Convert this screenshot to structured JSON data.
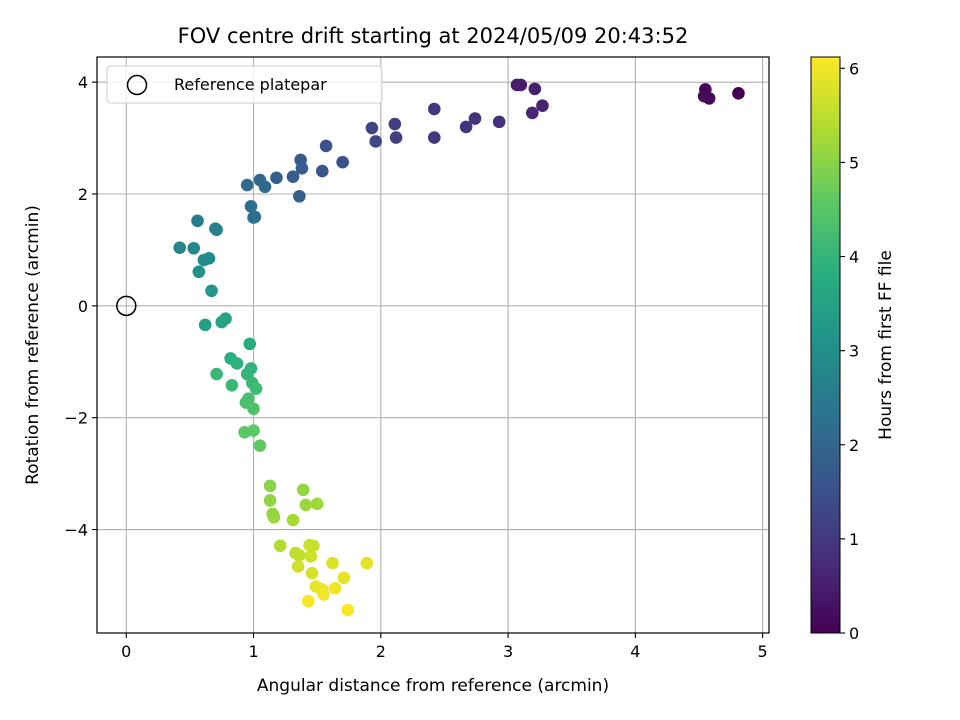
{
  "chart_data": {
    "type": "scatter",
    "title": "FOV centre drift starting at 2024/05/09 20:43:52",
    "xlabel": "Angular distance from reference (arcmin)",
    "ylabel": "Rotation from reference (arcmin)",
    "xlim": [
      -0.23,
      5.05
    ],
    "ylim": [
      -5.85,
      4.45
    ],
    "xticks": [
      0,
      1,
      2,
      3,
      4,
      5
    ],
    "xtick_labels": [
      "0",
      "1",
      "2",
      "3",
      "4",
      "5"
    ],
    "yticks": [
      -4,
      -2,
      0,
      2,
      4
    ],
    "ytick_labels": [
      "−4",
      "−2",
      "0",
      "2",
      "4"
    ],
    "grid": true,
    "legend": {
      "label": "Reference platepar",
      "placement": "top-left"
    },
    "reference_point": {
      "x": 0,
      "y": 0
    },
    "colorbar": {
      "label": "Hours from first FF file",
      "range": [
        0,
        6.12
      ],
      "ticks": [
        0,
        1,
        2,
        3,
        4,
        5,
        6
      ],
      "tick_labels": [
        "0",
        "1",
        "2",
        "3",
        "4",
        "5",
        "6"
      ],
      "colormap": "viridis"
    },
    "points": [
      {
        "x": 4.55,
        "y": 3.87,
        "c": 0.05
      },
      {
        "x": 4.54,
        "y": 3.75,
        "c": 0.1
      },
      {
        "x": 4.58,
        "y": 3.71,
        "c": 0.15
      },
      {
        "x": 4.81,
        "y": 3.8,
        "c": 0.0
      },
      {
        "x": 3.07,
        "y": 3.95,
        "c": 0.45
      },
      {
        "x": 3.1,
        "y": 3.95,
        "c": 0.5
      },
      {
        "x": 3.21,
        "y": 3.88,
        "c": 0.55
      },
      {
        "x": 3.27,
        "y": 3.58,
        "c": 0.6
      },
      {
        "x": 3.19,
        "y": 3.45,
        "c": 0.65
      },
      {
        "x": 2.93,
        "y": 3.29,
        "c": 0.8
      },
      {
        "x": 2.74,
        "y": 3.35,
        "c": 0.85
      },
      {
        "x": 2.67,
        "y": 3.2,
        "c": 0.9
      },
      {
        "x": 2.42,
        "y": 3.52,
        "c": 0.95
      },
      {
        "x": 2.42,
        "y": 3.01,
        "c": 1.0
      },
      {
        "x": 2.11,
        "y": 3.25,
        "c": 1.1
      },
      {
        "x": 2.12,
        "y": 3.01,
        "c": 1.15
      },
      {
        "x": 1.93,
        "y": 3.18,
        "c": 1.25
      },
      {
        "x": 1.96,
        "y": 2.94,
        "c": 1.3
      },
      {
        "x": 1.57,
        "y": 2.86,
        "c": 1.5
      },
      {
        "x": 1.7,
        "y": 2.57,
        "c": 1.55
      },
      {
        "x": 1.54,
        "y": 2.41,
        "c": 1.6
      },
      {
        "x": 1.37,
        "y": 2.61,
        "c": 1.7
      },
      {
        "x": 1.38,
        "y": 2.46,
        "c": 1.75
      },
      {
        "x": 1.31,
        "y": 2.31,
        "c": 1.8
      },
      {
        "x": 1.36,
        "y": 1.96,
        "c": 1.85
      },
      {
        "x": 1.18,
        "y": 2.29,
        "c": 1.9
      },
      {
        "x": 1.05,
        "y": 2.25,
        "c": 2.0
      },
      {
        "x": 1.09,
        "y": 2.13,
        "c": 2.05
      },
      {
        "x": 0.95,
        "y": 2.16,
        "c": 2.1
      },
      {
        "x": 0.98,
        "y": 1.78,
        "c": 2.2
      },
      {
        "x": 1.01,
        "y": 1.59,
        "c": 2.25
      },
      {
        "x": 1.0,
        "y": 1.58,
        "c": 2.3
      },
      {
        "x": 0.56,
        "y": 1.52,
        "c": 2.55
      },
      {
        "x": 0.7,
        "y": 1.38,
        "c": 2.6
      },
      {
        "x": 0.71,
        "y": 1.36,
        "c": 2.65
      },
      {
        "x": 0.42,
        "y": 1.04,
        "c": 2.75
      },
      {
        "x": 0.53,
        "y": 1.03,
        "c": 2.8
      },
      {
        "x": 0.65,
        "y": 0.85,
        "c": 2.9
      },
      {
        "x": 0.61,
        "y": 0.82,
        "c": 2.95
      },
      {
        "x": 0.57,
        "y": 0.61,
        "c": 3.05
      },
      {
        "x": 0.67,
        "y": 0.27,
        "c": 3.2
      },
      {
        "x": 0.62,
        "y": -0.34,
        "c": 3.45
      },
      {
        "x": 0.78,
        "y": -0.23,
        "c": 3.55
      },
      {
        "x": 0.75,
        "y": -0.29,
        "c": 3.6
      },
      {
        "x": 0.97,
        "y": -0.68,
        "c": 3.75
      },
      {
        "x": 0.82,
        "y": -0.94,
        "c": 3.85
      },
      {
        "x": 0.87,
        "y": -1.03,
        "c": 3.9
      },
      {
        "x": 0.98,
        "y": -1.12,
        "c": 3.95
      },
      {
        "x": 0.95,
        "y": -1.22,
        "c": 4.0
      },
      {
        "x": 0.71,
        "y": -1.22,
        "c": 4.05
      },
      {
        "x": 0.99,
        "y": -1.38,
        "c": 4.1
      },
      {
        "x": 0.83,
        "y": -1.42,
        "c": 4.1
      },
      {
        "x": 1.02,
        "y": -1.48,
        "c": 4.15
      },
      {
        "x": 0.96,
        "y": -1.66,
        "c": 4.25
      },
      {
        "x": 0.94,
        "y": -1.73,
        "c": 4.3
      },
      {
        "x": 1.0,
        "y": -1.84,
        "c": 4.35
      },
      {
        "x": 0.93,
        "y": -2.26,
        "c": 4.5
      },
      {
        "x": 1.0,
        "y": -2.23,
        "c": 4.55
      },
      {
        "x": 1.05,
        "y": -2.5,
        "c": 4.6
      },
      {
        "x": 1.13,
        "y": -3.22,
        "c": 5.0
      },
      {
        "x": 1.13,
        "y": -3.48,
        "c": 5.05
      },
      {
        "x": 1.15,
        "y": -3.72,
        "c": 5.1
      },
      {
        "x": 1.16,
        "y": -3.78,
        "c": 5.15
      },
      {
        "x": 1.39,
        "y": -3.29,
        "c": 5.1
      },
      {
        "x": 1.5,
        "y": -3.54,
        "c": 5.2
      },
      {
        "x": 1.41,
        "y": -3.56,
        "c": 5.2
      },
      {
        "x": 1.31,
        "y": -3.83,
        "c": 5.3
      },
      {
        "x": 1.21,
        "y": -4.29,
        "c": 5.4
      },
      {
        "x": 1.33,
        "y": -4.42,
        "c": 5.5
      },
      {
        "x": 1.36,
        "y": -4.46,
        "c": 5.55
      },
      {
        "x": 1.44,
        "y": -4.28,
        "c": 5.6
      },
      {
        "x": 1.47,
        "y": -4.29,
        "c": 5.6
      },
      {
        "x": 1.45,
        "y": -4.48,
        "c": 5.65
      },
      {
        "x": 1.35,
        "y": -4.66,
        "c": 5.7
      },
      {
        "x": 1.46,
        "y": -4.78,
        "c": 5.75
      },
      {
        "x": 1.62,
        "y": -4.6,
        "c": 5.8
      },
      {
        "x": 1.89,
        "y": -4.6,
        "c": 5.85
      },
      {
        "x": 1.71,
        "y": -4.86,
        "c": 5.9
      },
      {
        "x": 1.49,
        "y": -5.02,
        "c": 5.9
      },
      {
        "x": 1.54,
        "y": -5.07,
        "c": 5.95
      },
      {
        "x": 1.64,
        "y": -5.05,
        "c": 6.0
      },
      {
        "x": 1.55,
        "y": -5.16,
        "c": 6.0
      },
      {
        "x": 1.43,
        "y": -5.28,
        "c": 6.05
      },
      {
        "x": 1.74,
        "y": -5.44,
        "c": 6.1
      }
    ]
  }
}
